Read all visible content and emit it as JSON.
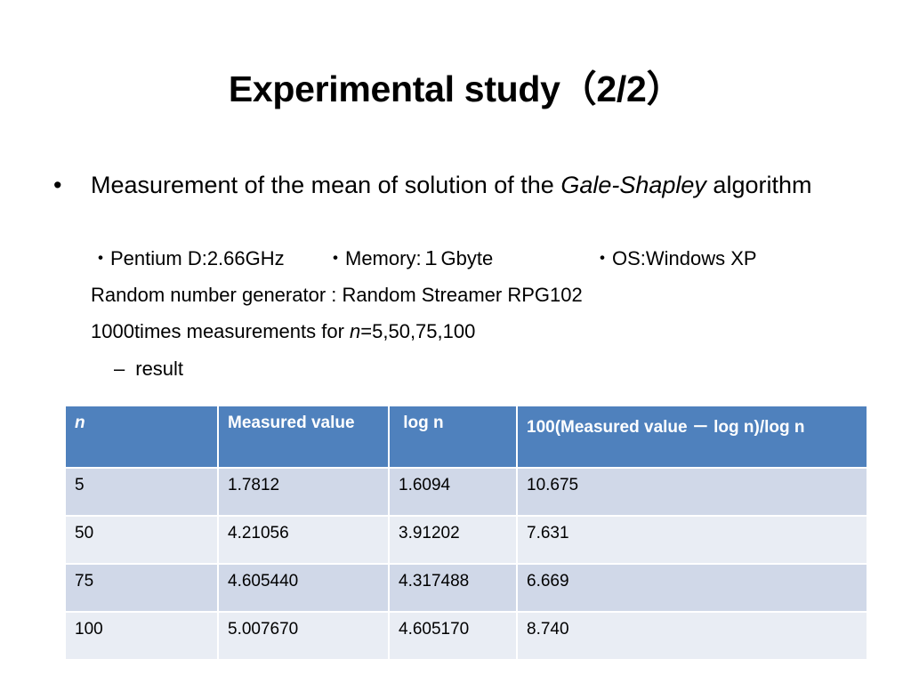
{
  "title": "Experimental study（2/2）",
  "bullet": {
    "marker": "•",
    "text_before": "Measurement  of  the mean of solution of  the  ",
    "text_italic": "Gale-Shapley",
    "text_after": " algorithm"
  },
  "specs": {
    "cpu": "・Pentium D:2.66GHz",
    "memory": "・Memory:１Gbyte",
    "os": "・OS:Windows XP"
  },
  "rng_line": "Random number generator : Random Streamer RPG102",
  "measure_line": {
    "before": "1000times measurements for ",
    "italic": "n",
    "after": "=5,50,75,100"
  },
  "sub_bullet": {
    "marker": "–",
    "text": "result"
  },
  "table": {
    "headers": [
      "n",
      "Measured value",
      " log n",
      "100(Measured value － log n)/log n"
    ],
    "rows": [
      [
        "5",
        "1.7812",
        "1.6094",
        "10.675"
      ],
      [
        "50",
        "4.21056",
        "3.91202",
        "7.631"
      ],
      [
        "75",
        "4.605440",
        "4.317488",
        "6.669"
      ],
      [
        "100",
        "5.007670",
        "4.605170",
        "8.740"
      ]
    ]
  }
}
